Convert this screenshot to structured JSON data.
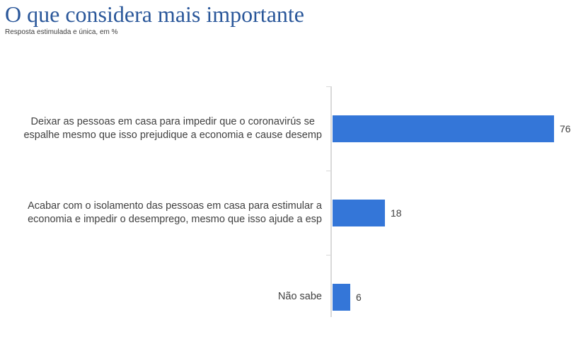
{
  "header": {
    "title": "O que considera mais importante",
    "subtitle": "Resposta estimulada e única, em %"
  },
  "colors": {
    "title": "#2A579A",
    "bar": "#3476D8",
    "axis": "#D9D9D9",
    "label": "#404040"
  },
  "chart_data": {
    "type": "bar",
    "orientation": "horizontal",
    "title": "O que considera mais importante",
    "subtitle": "Resposta estimulada e única, em %",
    "unit": "%",
    "categories": [
      "Deixar as pessoas em casa para impedir que o coronavirús se espalhe mesmo que isso prejudique a economia e cause desemp",
      "Acabar com o isolamento das pessoas em casa para estimular a economia e impedir o desemprego, mesmo que isso ajude a esp",
      "Não sabe"
    ],
    "category_lines": [
      [
        "Deixar as pessoas em casa para impedir que o coronavirús se",
        "espalhe mesmo que isso prejudique a economia e cause desemp"
      ],
      [
        "Acabar com o isolamento das pessoas em casa para estimular a",
        "economia e impedir o desemprego, mesmo que isso ajude a esp"
      ],
      [
        "Não sabe"
      ]
    ],
    "values": [
      76,
      18,
      6
    ],
    "data_labels": [
      "76",
      "18",
      "6"
    ],
    "xlim": [
      0,
      88
    ],
    "grid": false,
    "legend": "none",
    "data_label_position": "outside-end"
  }
}
